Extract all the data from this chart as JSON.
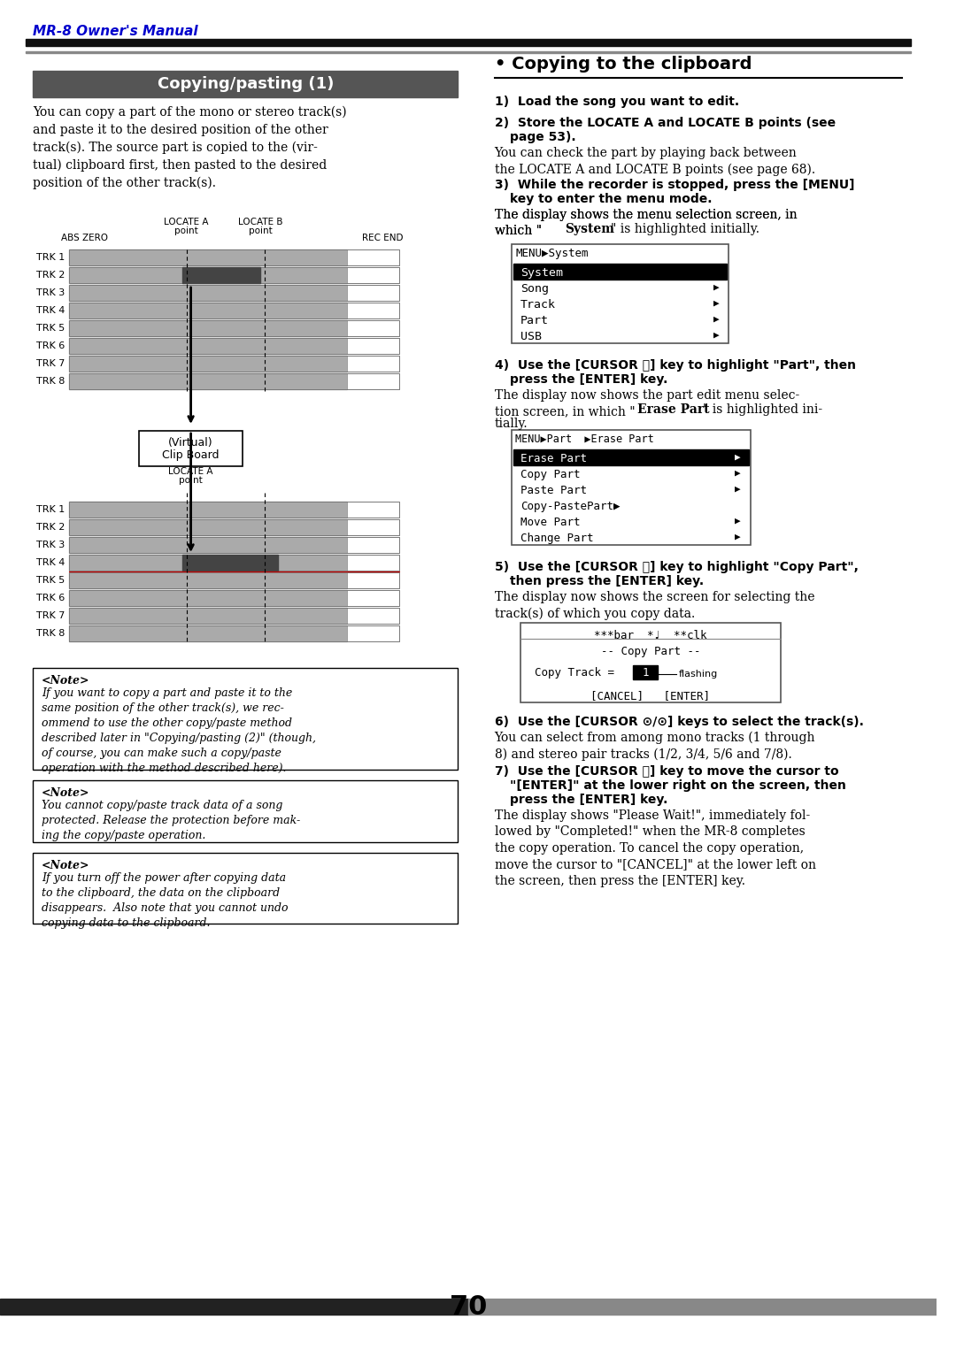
{
  "page_bg": "#ffffff",
  "header_text": "MR-8 Owner's Manual",
  "header_color": "#0000cc",
  "header_italic": true,
  "top_rule_color": "#000000",
  "left_section_title": "Copying/pasting (1)",
  "left_section_title_bg": "#555555",
  "left_section_title_color": "#ffffff",
  "left_body_text": "You can copy a part of the mono or stereo track(s) and paste it to the desired position of the other track(s). The source part is copied to the (vir-\ntual) clipboard first, then pasted to the desired\nposition of the other track(s).",
  "right_section_title": "• Copying to the clipboard",
  "step1_bold": "1)  Load the song you want to edit.",
  "step2_bold": "2)  Store the LOCATE A and LOCATE B points (see\n      page 53).",
  "step2_normal": "You can check the part by playing back between\nthe LOCATE A and LOCATE B points (see page 68).",
  "step3_bold": "3)  While the recorder is stopped, press the [MENU]\n      key to enter the menu mode.",
  "step3_normal": "The display shows the menu selection screen, in\nwhich \"System\" is highlighted initially.",
  "menu1_title": "MENU▶System",
  "menu1_items": [
    "System",
    "Song",
    "Track",
    "Part",
    "USB"
  ],
  "menu1_highlight": 0,
  "step4_bold": "4)  Use the [CURSOR Ⓗ] key to highlight \"Part\", then\n      press the [ENTER] key.",
  "step4_normal": "The display now shows the part edit menu selec-\ntion screen, in which \"Erase Part\" is highlighted ini-\ntially.",
  "menu2_title": "MENU▶Part  ▶Erase Part",
  "menu2_items": [
    "Erase Part",
    "Copy Part",
    "Paste Part",
    "Copy-PastePart▶",
    "Move Part",
    "Change Part"
  ],
  "menu2_highlight": 0,
  "step5_bold": "5)  Use the [CURSOR Ⓗ] key to highlight \"Copy Part\",\n      then press the [ENTER] key.",
  "step5_normal": "The display now shows the screen for selecting the\ntrack(s) of which you copy data.",
  "menu3_line1": "***bar  *♩  **clk",
  "menu3_line2": "-- Copy Part --",
  "menu3_line3": "Copy Track =",
  "menu3_val": "1",
  "menu3_flashing": "flashing",
  "menu3_bottom": "[CANCEL]   [ENTER]",
  "step6_bold": "6)  Use the [CURSOR ⊙/⊙] keys to select the track(s).",
  "step6_normal": "You can select from among mono tracks (1 through\n8) and stereo pair tracks (1/2, 3/4, 5/6 and 7/8).",
  "step7_bold": "7)  Use the [CURSOR Ⓗ] key to move the cursor to\n      \"[ENTER]\" at the lower right on the screen, then\n      press the [ENTER] key.",
  "step7_normal": "The display shows \"Please Wait!\", immediately fol-\nlowed by \"Completed!\" when the MR-8 completes\nthe copy operation. To cancel the copy operation,\nmove the cursor to \"[CANCEL]\" at the lower left on\nthe screen, then press the [ENTER] key.",
  "note1_title": "<Note>",
  "note1_body": "If you want to copy a part and paste it to the\nsame position of the other track(s), we rec-\nommend to use the other copy/paste method\ndescribed later in \"Copying/pasting (2)\" (though,\nof course, you can make such a copy/paste\noperation with the method described here).",
  "note2_title": "<Note>",
  "note2_body": "You cannot copy/paste track data of a song\nprotected. Release the protection before mak-\ning the copy/paste operation.",
  "note3_title": "<Note>",
  "note3_body": "If you turn off the power after copying data\nto the clipboard, the data on the clipboard\ndisappears.  Also note that you cannot undo\ncopying data to the clipboard.",
  "footer_number": "70",
  "footer_bar_left": "#333333",
  "footer_bar_right": "#888888",
  "track_bg": "#aaaaaa",
  "track_dark": "#444444",
  "track_white_end": "#ffffff"
}
